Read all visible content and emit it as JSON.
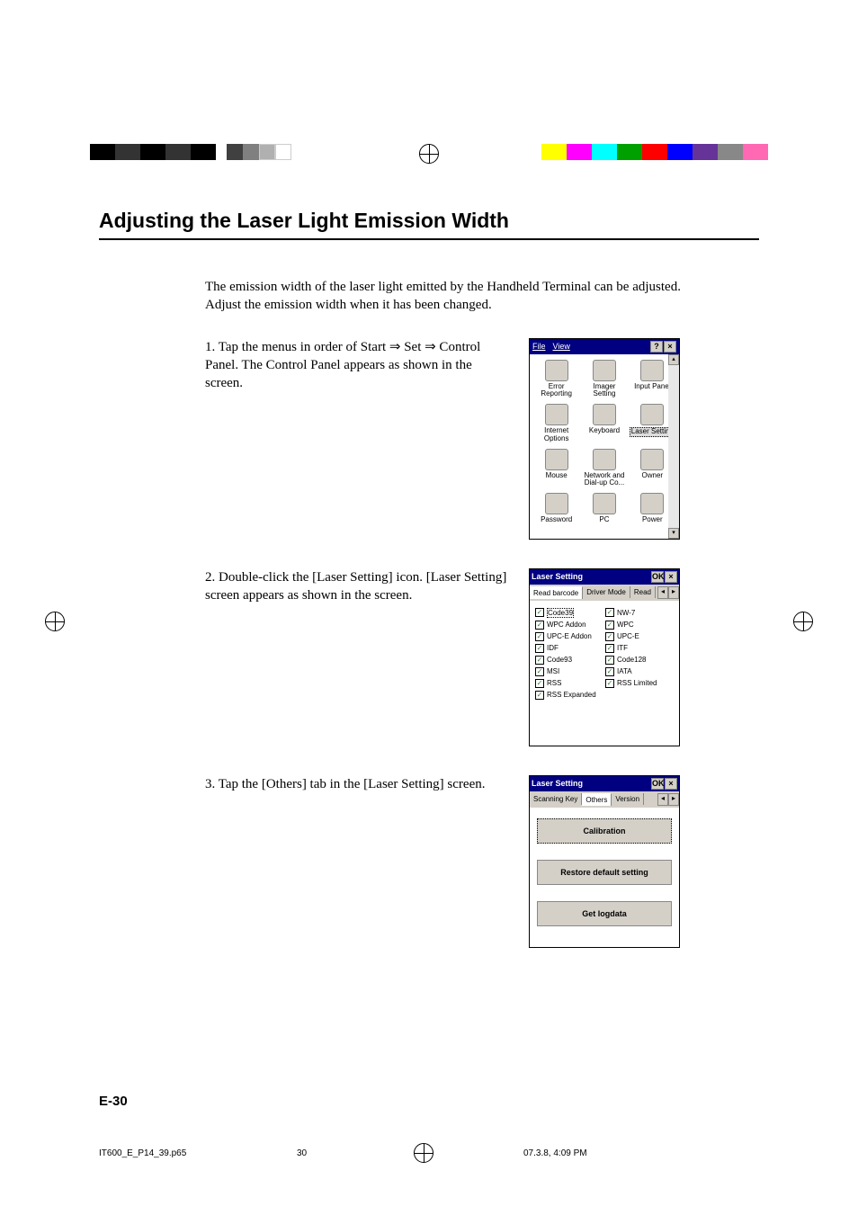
{
  "title": "Adjusting the Laser Light Emission Width",
  "intro": "The emission width of the laser light emitted by the Handheld Terminal can be adjusted. Adjust the emission width when it has been changed.",
  "steps": {
    "s1": "1. Tap the menus in order of Start ⇒ Set ⇒ Control Panel. The Control Panel appears as shown in the screen.",
    "s2": "2. Double-click the [Laser Setting] icon. [Laser Setting] screen appears as shown in the screen.",
    "s3": "3. Tap the [Others] tab in the [Laser Setting] screen."
  },
  "control_panel": {
    "menu_file": "File",
    "menu_view": "View",
    "help_btn": "?",
    "close_btn": "×",
    "items": [
      {
        "label": "Error Reporting"
      },
      {
        "label": "Imager Setting"
      },
      {
        "label": "Input Panel"
      },
      {
        "label": "Internet Options"
      },
      {
        "label": "Keyboard"
      },
      {
        "label": "Laser Setting"
      },
      {
        "label": "Mouse"
      },
      {
        "label": "Network and Dial-up Co..."
      },
      {
        "label": "Owner"
      },
      {
        "label": "Password"
      },
      {
        "label": "PC"
      },
      {
        "label": "Power"
      }
    ]
  },
  "laser_setting": {
    "title": "Laser Setting",
    "ok_btn": "OK",
    "close_btn": "×",
    "tabs_read": {
      "t1": "Read barcode",
      "t2": "Driver Mode",
      "t3": "Read"
    },
    "checkboxes": [
      {
        "label": "Code39",
        "dotted": true
      },
      {
        "label": "NW-7"
      },
      {
        "label": "WPC Addon"
      },
      {
        "label": "WPC"
      },
      {
        "label": "UPC-E Addon"
      },
      {
        "label": "UPC-E"
      },
      {
        "label": "IDF"
      },
      {
        "label": "ITF"
      },
      {
        "label": "Code93"
      },
      {
        "label": "Code128"
      },
      {
        "label": "MSI"
      },
      {
        "label": "IATA"
      },
      {
        "label": "RSS"
      },
      {
        "label": "RSS Limited"
      },
      {
        "label": "RSS Expanded"
      }
    ],
    "tabs_others": {
      "t1": "Scanning Key",
      "t2": "Others",
      "t3": "Version"
    },
    "buttons": {
      "calibration": "Calibration",
      "restore": "Restore default setting",
      "logdata": "Get logdata"
    }
  },
  "page_number": "E-30",
  "footer": {
    "filename": "IT600_E_P14_39.p65",
    "page": "30",
    "date": "07.3.8, 4:09 PM"
  },
  "colors": {
    "cmyk_bar": [
      "#000000",
      "#333333",
      "#000000",
      "#333333",
      "#000000"
    ],
    "gray_bar": [
      "#404040",
      "#808080",
      "#b0b0b0",
      "#ffffff"
    ],
    "right_bar": [
      "#ffff00",
      "#ff00ff",
      "#00ffff",
      "#00a000",
      "#ff0000",
      "#0000ff",
      "#663399",
      "#888888",
      "#ff69b4"
    ],
    "titlebar_bg": "#000080"
  }
}
